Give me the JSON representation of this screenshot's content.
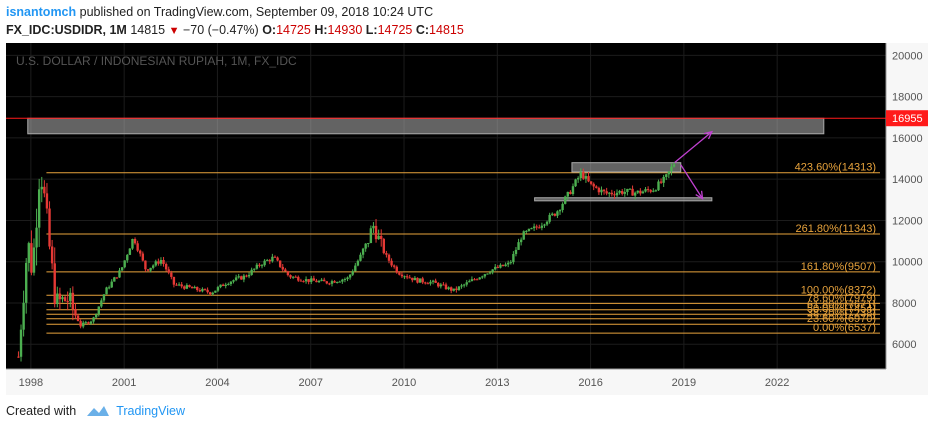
{
  "header": {
    "author": "isnantomch",
    "published_text": " published on TradingView.com, September 09, 2018 10:24 UTC",
    "symbol": "FX_IDC:USDIDR, 1M",
    "last": "14815",
    "change": "−70 (−0.47%)",
    "o_label": "O:",
    "o": "14725",
    "h_label": "H:",
    "h": "14930",
    "l_label": "L:",
    "l": "14725",
    "c_label": "C:",
    "c": "14815"
  },
  "footer": {
    "created_with": "Created with",
    "brand": "TradingView"
  },
  "colors": {
    "up": "#4caf50",
    "down": "#e53935",
    "fib": "#e8a33c",
    "arrow": "#c040d0",
    "price_line": "#ff1a1a"
  },
  "chart_data": {
    "type": "candlestick",
    "title": "U.S. DOLLAR / INDONESIAN RUPIAH, 1M, FX_IDC",
    "x_ticks": [
      "1998",
      "2001",
      "2004",
      "2007",
      "2010",
      "2013",
      "2016",
      "2019",
      "2022"
    ],
    "y_ticks": [
      "20000",
      "18000",
      "16000",
      "14000",
      "12000",
      "10000",
      "8000",
      "6000"
    ],
    "ylim": [
      4800,
      20600
    ],
    "xlim": [
      1997.2,
      2025.5
    ],
    "current_price_label": "16955",
    "current_price": 16955,
    "price_path": [
      [
        1997.6,
        5400
      ],
      [
        1997.9,
        11000
      ],
      [
        1998.05,
        9500
      ],
      [
        1998.3,
        15000
      ],
      [
        1998.5,
        12000
      ],
      [
        1998.8,
        8000
      ],
      [
        1999.2,
        8200
      ],
      [
        1999.6,
        6900
      ],
      [
        2000.0,
        7200
      ],
      [
        2000.4,
        8600
      ],
      [
        2000.9,
        9600
      ],
      [
        2001.3,
        11200
      ],
      [
        2001.7,
        9600
      ],
      [
        2002.2,
        10100
      ],
      [
        2002.6,
        8900
      ],
      [
        2003.2,
        8700
      ],
      [
        2003.8,
        8500
      ],
      [
        2004.3,
        9000
      ],
      [
        2004.9,
        9300
      ],
      [
        2005.4,
        9900
      ],
      [
        2005.8,
        10200
      ],
      [
        2006.3,
        9300
      ],
      [
        2006.9,
        9100
      ],
      [
        2007.5,
        9000
      ],
      [
        2008.2,
        9200
      ],
      [
        2008.8,
        10800
      ],
      [
        2009.0,
        11800
      ],
      [
        2009.4,
        10300
      ],
      [
        2009.8,
        9500
      ],
      [
        2010.4,
        9100
      ],
      [
        2010.9,
        9000
      ],
      [
        2011.6,
        8600
      ],
      [
        2012.2,
        9100
      ],
      [
        2012.8,
        9600
      ],
      [
        2013.4,
        9900
      ],
      [
        2013.8,
        11300
      ],
      [
        2014.3,
        11700
      ],
      [
        2014.9,
        12400
      ],
      [
        2015.3,
        13300
      ],
      [
        2015.7,
        14300
      ],
      [
        2016.0,
        13700
      ],
      [
        2016.5,
        13300
      ],
      [
        2017.0,
        13400
      ],
      [
        2017.5,
        13350
      ],
      [
        2018.0,
        13500
      ],
      [
        2018.4,
        14000
      ],
      [
        2018.7,
        14815
      ]
    ],
    "fib_levels": [
      {
        "label": "423.60%(14313)",
        "value": 14313
      },
      {
        "label": "261.80%(11343)",
        "value": 11343
      },
      {
        "label": "161.80%(9507)",
        "value": 9507
      },
      {
        "label": "100.00%(8372)",
        "value": 8372
      },
      {
        "label": "78.60%(7979)",
        "value": 7979
      },
      {
        "label": "61.80%(7671)",
        "value": 7671
      },
      {
        "label": "50.00%(7454)",
        "value": 7454
      },
      {
        "label": "38.20%(7238)",
        "value": 7238
      },
      {
        "label": "23.60%(6970)",
        "value": 6970
      },
      {
        "label": "0.00%(6537)",
        "value": 6537
      }
    ],
    "zones": [
      {
        "x0": 1997.9,
        "x1": 2023.5,
        "y0": 16200,
        "y1": 16950
      },
      {
        "x0": 2015.4,
        "x1": 2018.9,
        "y0": 14350,
        "y1": 14800
      },
      {
        "x0": 2014.2,
        "x1": 2019.9,
        "y0": 12950,
        "y1": 13100
      }
    ],
    "arrows": [
      {
        "from": [
          2018.7,
          14800
        ],
        "to": [
          2019.9,
          16300
        ]
      },
      {
        "from": [
          2018.9,
          14700
        ],
        "to": [
          2019.6,
          13050
        ]
      }
    ]
  }
}
